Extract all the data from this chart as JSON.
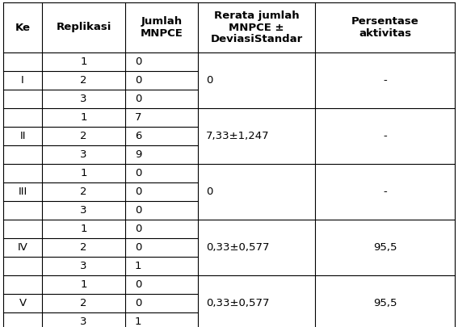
{
  "col_headers": [
    "Ke",
    "Replikasi",
    "Jumlah\nMNPCE",
    "Rerata jumlah\nMNPCE ±\nDeviasiStandar",
    "Persentase\naktivitas"
  ],
  "groups": [
    {
      "ke": "I",
      "replications": [
        "1",
        "2",
        "3"
      ],
      "jumlah": [
        "0",
        "0",
        "0"
      ],
      "rerata": "0",
      "persentase": "-"
    },
    {
      "ke": "II",
      "replications": [
        "1",
        "2",
        "3"
      ],
      "jumlah": [
        "7",
        "6",
        "9"
      ],
      "rerata": "7,33±1,247",
      "persentase": "-"
    },
    {
      "ke": "III",
      "replications": [
        "1",
        "2",
        "3"
      ],
      "jumlah": [
        "0",
        "0",
        "0"
      ],
      "rerata": "0",
      "persentase": "-"
    },
    {
      "ke": "IV",
      "replications": [
        "1",
        "2",
        "3"
      ],
      "jumlah": [
        "0",
        "0",
        "1"
      ],
      "rerata": "0,33±0,577",
      "persentase": "95,5"
    },
    {
      "ke": "V",
      "replications": [
        "1",
        "2",
        "3"
      ],
      "jumlah": [
        "0",
        "0",
        "1"
      ],
      "rerata": "0,33±0,577",
      "persentase": "95,5"
    }
  ],
  "header_fontsize": 9.5,
  "cell_fontsize": 9.5,
  "font_weight_header": "bold",
  "bg_color": "white",
  "line_color": "black",
  "text_color": "black",
  "fig_width": 5.67,
  "fig_height": 4.05,
  "dpi": 100
}
